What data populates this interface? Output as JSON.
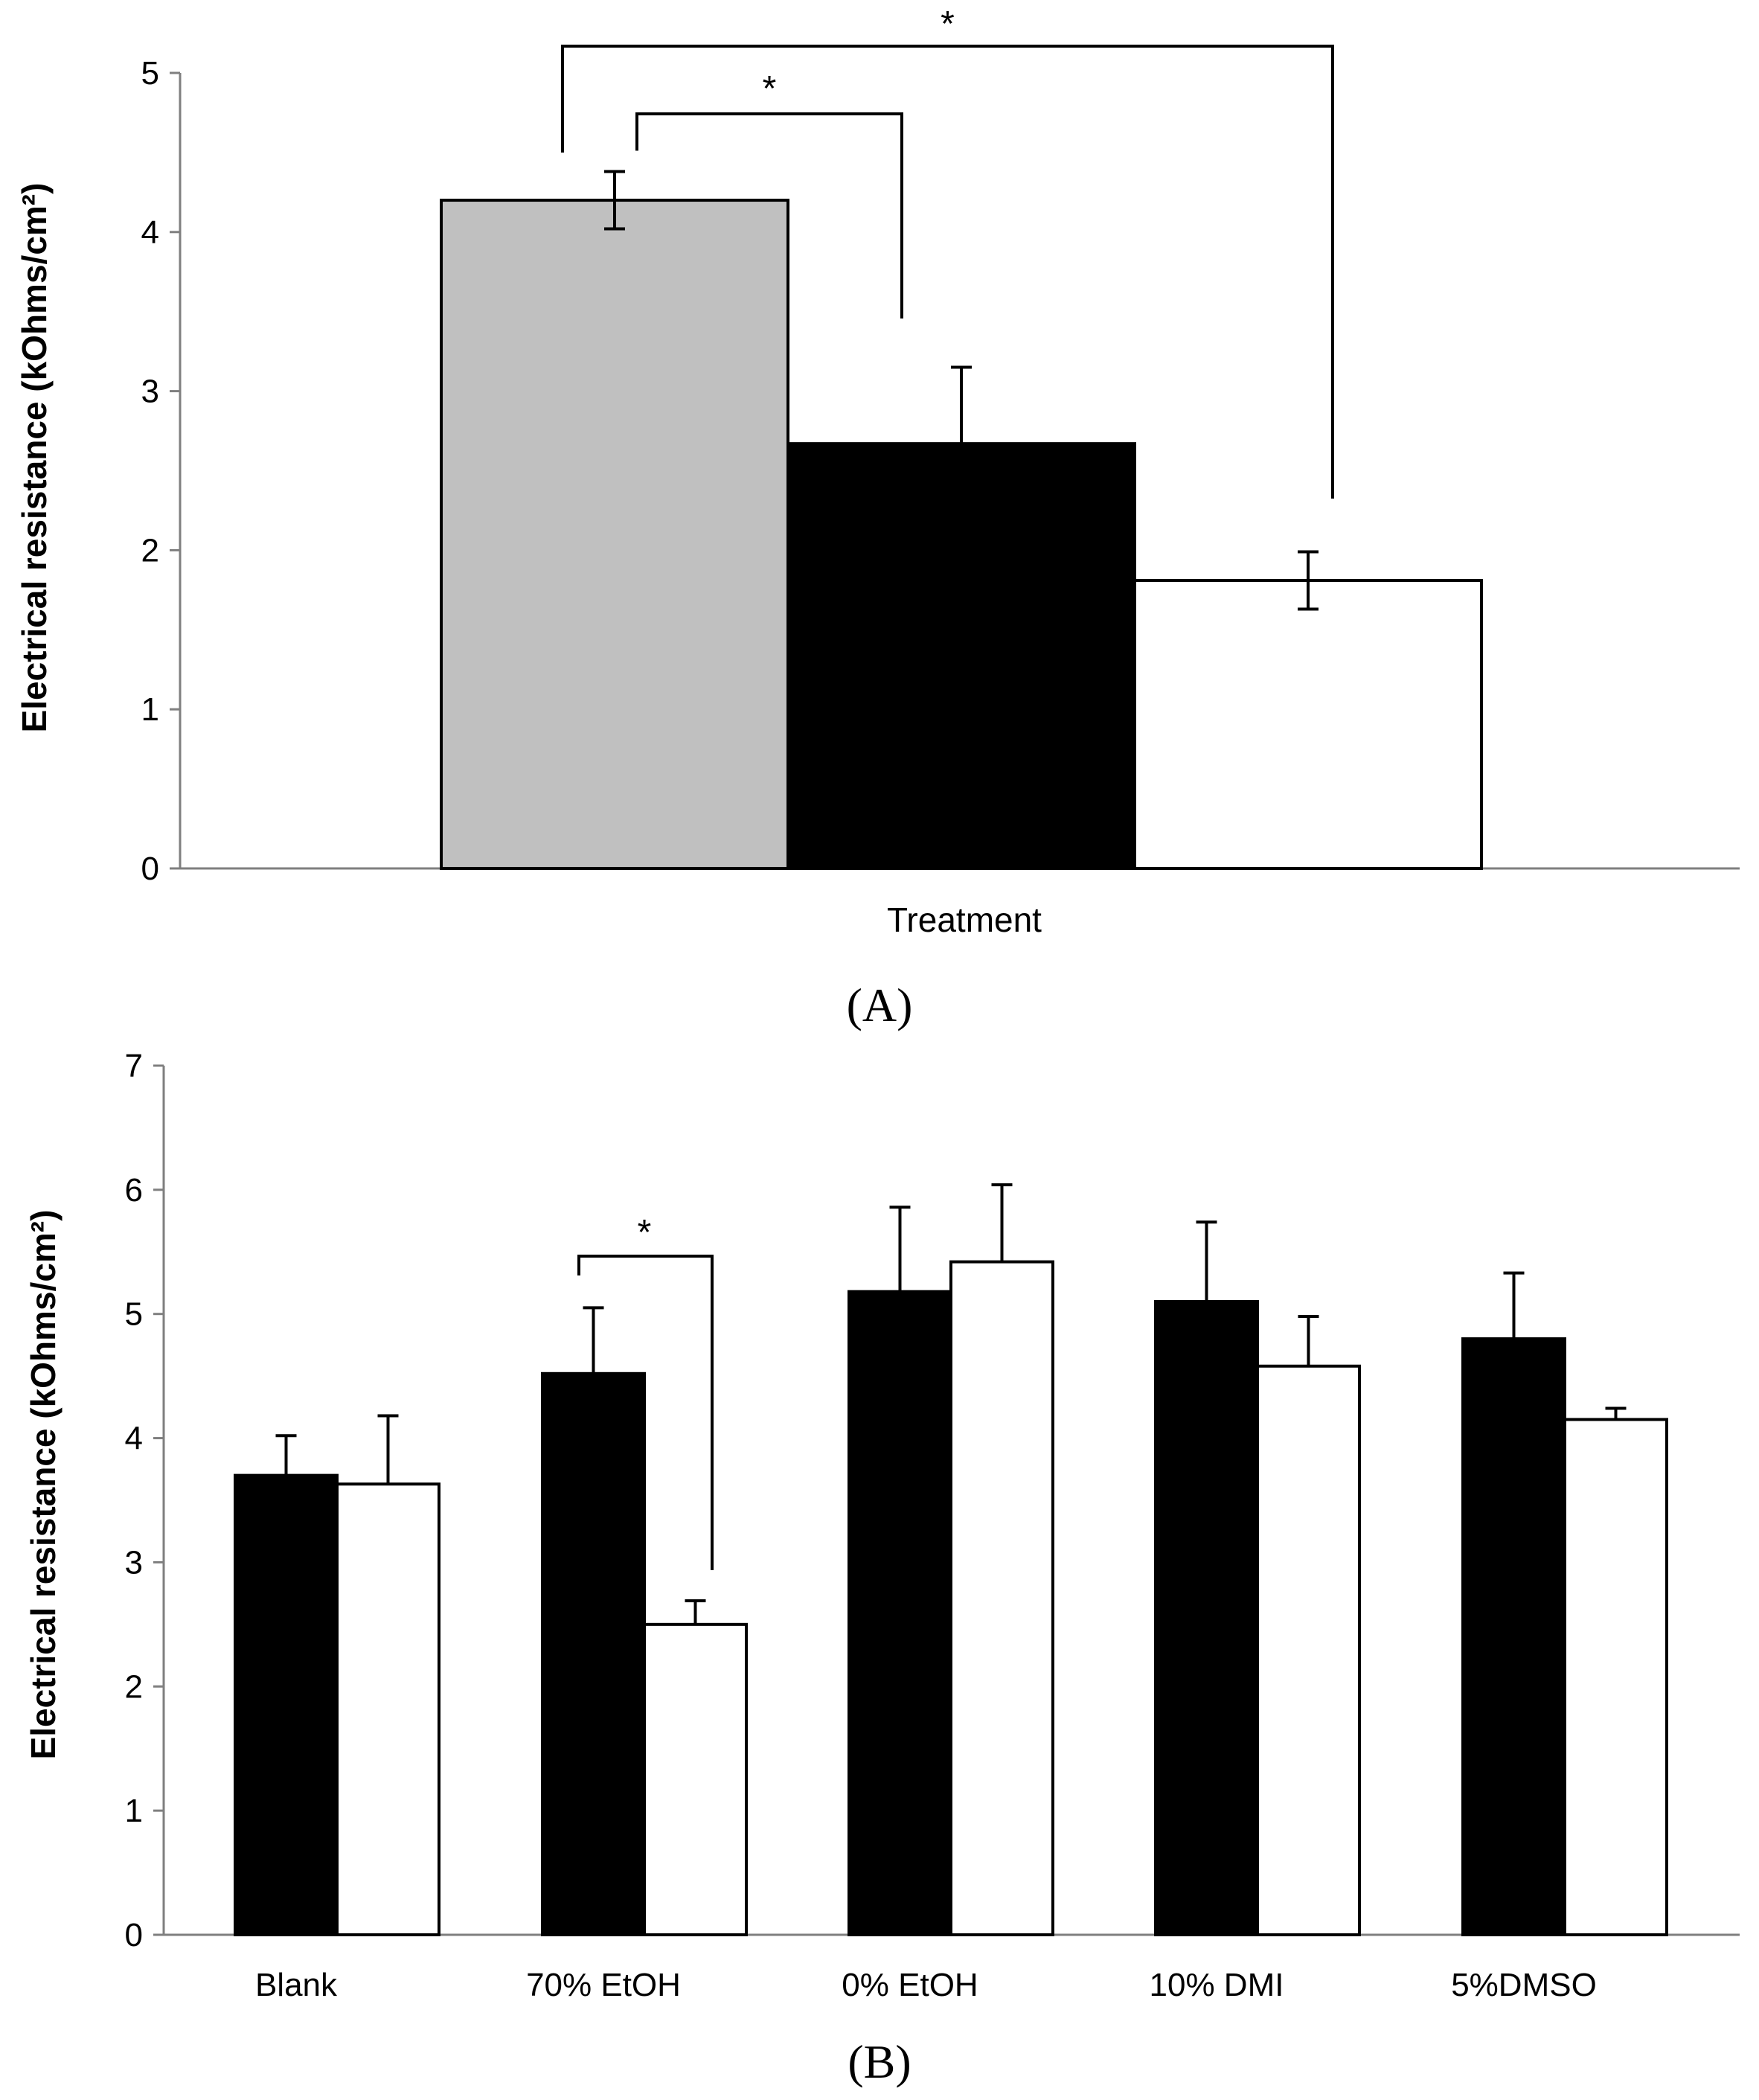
{
  "chart_data": [
    {
      "panel": "(A)",
      "type": "bar",
      "title": "",
      "xlabel": "Treatment",
      "ylabel": "Electrical resistance (kOhms/cm²)",
      "ylim": [
        0,
        5
      ],
      "yticks": [
        "0",
        "1",
        "2",
        "3",
        "4",
        "5"
      ],
      "categories": [
        ""
      ],
      "series": [
        {
          "name": "grey",
          "color": "#c0c0c0",
          "values": [
            4.2
          ],
          "errors": [
            0.18
          ]
        },
        {
          "name": "black",
          "color": "#000000",
          "values": [
            2.67
          ],
          "errors": [
            0.48
          ]
        },
        {
          "name": "white",
          "color": "#ffffff",
          "values": [
            1.81
          ],
          "errors": [
            0.18
          ]
        }
      ],
      "significance": [
        {
          "from_series": 0,
          "to_series": 1,
          "label": "*"
        },
        {
          "from_series": 0,
          "to_series": 2,
          "label": "*"
        }
      ]
    },
    {
      "panel": "(B)",
      "type": "bar",
      "title": "",
      "xlabel": "",
      "ylabel": "Electrical resistance (kOhms/cm²)",
      "ylim": [
        0,
        7
      ],
      "yticks": [
        "0",
        "1",
        "2",
        "3",
        "4",
        "5",
        "6",
        "7"
      ],
      "categories": [
        "Blank",
        "70% EtOH",
        "0% EtOH",
        "10% DMI",
        "5%DMSO"
      ],
      "series": [
        {
          "name": "black",
          "color": "#000000",
          "values": [
            3.7,
            4.52,
            5.18,
            5.1,
            4.8
          ],
          "errors": [
            0.32,
            0.53,
            0.68,
            0.64,
            0.53
          ]
        },
        {
          "name": "white",
          "color": "#ffffff",
          "values": [
            3.63,
            2.5,
            5.42,
            4.58,
            4.15
          ],
          "errors": [
            0.55,
            0.19,
            0.62,
            0.4,
            0.09
          ]
        }
      ],
      "significance": [
        {
          "category": 1,
          "label": "*"
        }
      ]
    }
  ]
}
